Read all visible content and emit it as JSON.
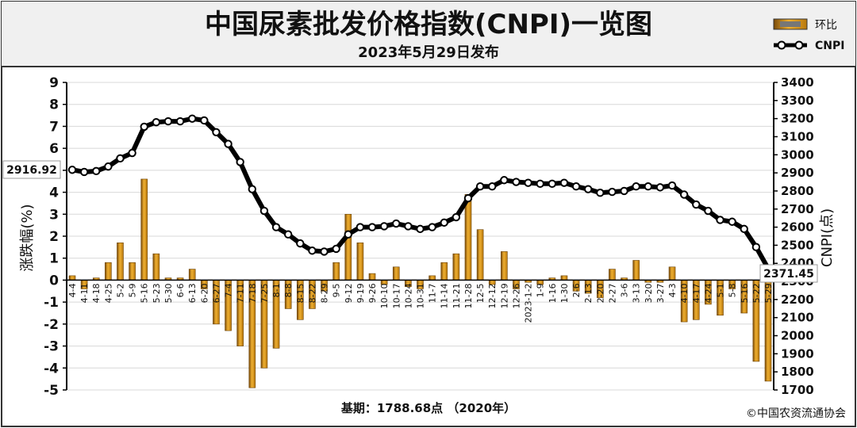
{
  "chart_data": {
    "type": "bar+line",
    "title": "中国尿素批发价格指数(CNPI)一览图",
    "subtitle": "2023年5月29日发布",
    "ylabel_left": "涨跌幅(%)",
    "ylabel_right": "CNPI(点)",
    "ylim_left": [
      -5,
      9
    ],
    "ylim_right": [
      1700,
      3400
    ],
    "left_ticks": [
      "9",
      "8",
      "7",
      "6",
      "5",
      "4",
      "3",
      "2",
      "1",
      "0",
      "-1",
      "-2",
      "-3",
      "-4",
      "-5"
    ],
    "right_ticks": [
      "3400",
      "3300",
      "3200",
      "3100",
      "3000",
      "2900",
      "2800",
      "2700",
      "2600",
      "2500",
      "2400",
      "2300",
      "2200",
      "2100",
      "2000",
      "1900",
      "1800",
      "1700"
    ],
    "legend": [
      {
        "name": "环比",
        "kind": "bar",
        "color": "#d4901c"
      },
      {
        "name": "CNPI",
        "kind": "line",
        "color": "#000000"
      }
    ],
    "categories": [
      "4-4",
      "4-11",
      "4-18",
      "4-25",
      "5-2",
      "5-9",
      "5-16",
      "5-23",
      "5-30",
      "6-6",
      "6-13",
      "6-20",
      "6-27",
      "7-4",
      "7-11",
      "7-18",
      "7-25",
      "8-1",
      "8-8",
      "8-15",
      "8-22",
      "8-29",
      "9-5",
      "9-12",
      "9-19",
      "9-26",
      "10-10",
      "10-17",
      "10-24",
      "10-31",
      "11-7",
      "11-14",
      "11-21",
      "11-28",
      "12-5",
      "12-12",
      "12-19",
      "12-26",
      "2023-1-2",
      "1-9",
      "1-16",
      "1-30",
      "2-6",
      "2-13",
      "2-20",
      "2-27",
      "3-6",
      "3-13",
      "3-20",
      "3-27",
      "4-3",
      "4-10",
      "4-17",
      "4-24",
      "5-1",
      "5-8",
      "5-16",
      "5-22",
      "5-29"
    ],
    "series": [
      {
        "name": "环比",
        "type": "bar",
        "axis": "left",
        "values": [
          0.2,
          -0.4,
          0.1,
          0.8,
          1.7,
          0.8,
          4.6,
          1.2,
          0.1,
          0.1,
          0.5,
          -0.4,
          -2.0,
          -2.3,
          -3.0,
          -4.9,
          -4.0,
          -3.1,
          -1.3,
          -1.8,
          -1.3,
          -0.5,
          0.8,
          3.0,
          1.7,
          0.3,
          -0.2,
          0.6,
          -0.3,
          -0.4,
          0.2,
          0.8,
          1.2,
          3.9,
          2.3,
          -0.2,
          1.3,
          -0.4,
          -0.1,
          -0.2,
          0.1,
          0.2,
          -0.5,
          -0.6,
          -0.8,
          0.5,
          0.1,
          0.9,
          -0.1,
          -0.1,
          0.6,
          -1.9,
          -1.8,
          -1.1,
          -1.6,
          -0.4,
          -1.5,
          -3.7,
          -4.6
        ]
      },
      {
        "name": "CNPI",
        "type": "line",
        "axis": "right",
        "values": [
          2916.92,
          2905,
          2910,
          2935,
          2980,
          3010,
          3155,
          3180,
          3185,
          3185,
          3200,
          3190,
          3125,
          3060,
          2960,
          2810,
          2690,
          2600,
          2560,
          2510,
          2470,
          2465,
          2480,
          2560,
          2600,
          2600,
          2605,
          2620,
          2605,
          2590,
          2600,
          2625,
          2655,
          2760,
          2825,
          2825,
          2860,
          2850,
          2845,
          2840,
          2840,
          2845,
          2825,
          2810,
          2790,
          2795,
          2800,
          2825,
          2825,
          2820,
          2830,
          2780,
          2725,
          2690,
          2640,
          2630,
          2590,
          2490,
          2371.45
        ]
      }
    ],
    "annotations": {
      "start_value": "2916.92",
      "end_value": "2371.45",
      "base_note": "基期：1788.68点 （2020年）",
      "source": "©中国农资流通协会"
    }
  }
}
